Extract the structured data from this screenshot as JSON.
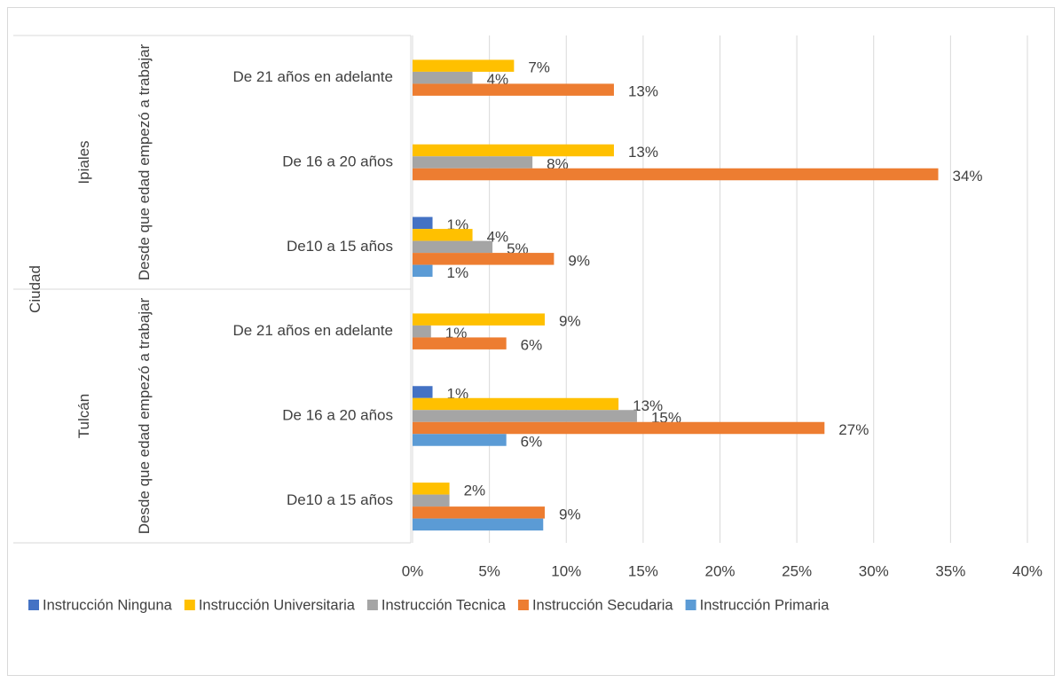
{
  "chart_data": {
    "type": "bar",
    "orientation": "horizontal",
    "category_header": "Ciudad",
    "groups": [
      {
        "name": "Ipiales",
        "subgroup": "Desde que edad empezó a trabajar",
        "categories": [
          "De 21 años en adelante",
          "De 16 a 20 años",
          "De10 a 15 años"
        ]
      },
      {
        "name": "Tulcán",
        "subgroup": "Desde que edad empezó a trabajar",
        "categories": [
          "De 21 años en adelante",
          "De 16 a 20 años",
          "De10 a 15 años"
        ]
      }
    ],
    "series": [
      {
        "name": "Instrucción Ninguna",
        "color": "#4472c4",
        "values": [
          null,
          null,
          1.3,
          null,
          1.3,
          null
        ],
        "value_labels": [
          null,
          null,
          "1%",
          null,
          "1%",
          null
        ]
      },
      {
        "name": "Instrucción Universitaria",
        "color": "#ffc000",
        "values": [
          6.6,
          13.1,
          3.9,
          8.6,
          13.4,
          2.4
        ],
        "value_labels": [
          "7%",
          "13%",
          "4%",
          "9%",
          "13%",
          "2%"
        ]
      },
      {
        "name": "Instrucción Tecnica",
        "color": "#a5a5a5",
        "values": [
          3.9,
          7.8,
          5.2,
          1.2,
          14.6,
          2.4
        ],
        "value_labels": [
          "4%",
          "8%",
          "5%",
          "1%",
          "15%",
          null
        ]
      },
      {
        "name": "Instrucción Secudaria",
        "color": "#ed7d31",
        "values": [
          13.1,
          34.2,
          9.2,
          6.1,
          26.8,
          8.6
        ],
        "value_labels": [
          "13%",
          "34%",
          "9%",
          "6%",
          "27%",
          "9%"
        ]
      },
      {
        "name": "Instrucción Primaria",
        "color": "#5b9bd5",
        "values": [
          null,
          null,
          1.3,
          null,
          6.1,
          8.5
        ],
        "value_labels": [
          null,
          null,
          "1%",
          null,
          "6%",
          null
        ]
      }
    ],
    "xlim": [
      0,
      40
    ],
    "xticks": [
      {
        "value": 0,
        "label": "0%"
      },
      {
        "value": 5,
        "label": "5%"
      },
      {
        "value": 10,
        "label": "10%"
      },
      {
        "value": 15,
        "label": "15%"
      },
      {
        "value": 20,
        "label": "20%"
      },
      {
        "value": 25,
        "label": "25%"
      },
      {
        "value": 30,
        "label": "30%"
      },
      {
        "value": 35,
        "label": "35%"
      },
      {
        "value": 40,
        "label": "40%"
      }
    ],
    "grid": true,
    "legend": "bottom"
  }
}
